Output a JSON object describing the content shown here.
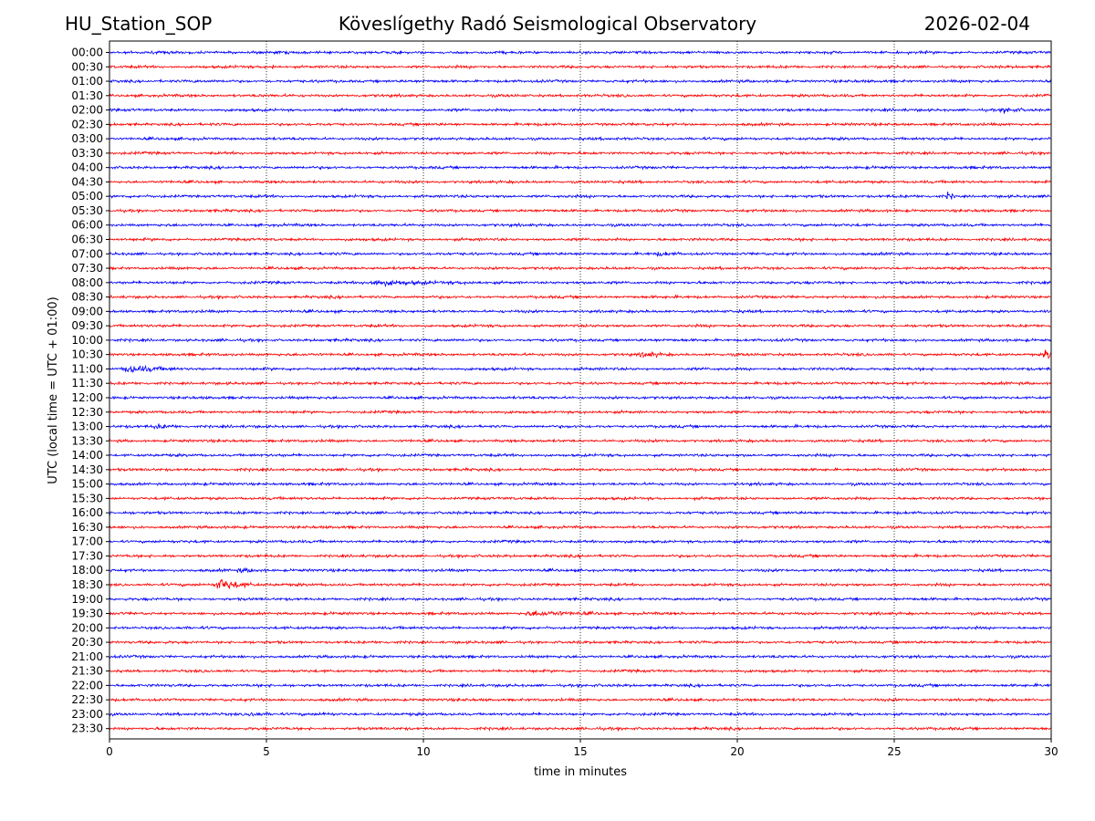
{
  "header": {
    "station": "HU_Station_SOP",
    "title": "Köveslígethy Radó Seismological Observatory",
    "date": "2026-02-04"
  },
  "chart_data": {
    "type": "line",
    "title": "Köveslígethy Radó Seismological Observatory",
    "xlabel": "time in minutes",
    "ylabel": "UTC (local time = UTC + 01:00)",
    "xlim": [
      0,
      30
    ],
    "x_ticks": [
      0,
      5,
      10,
      15,
      20,
      25,
      30
    ],
    "x_tick_labels": [
      "0",
      "5",
      "10",
      "15",
      "20",
      "25",
      "30"
    ],
    "vertical_gridlines_at": [
      5,
      10,
      15,
      20,
      25
    ],
    "trace_colors": [
      "#0000ff",
      "#ff0000"
    ],
    "row_labels": [
      "00:00",
      "00:30",
      "01:00",
      "01:30",
      "02:00",
      "02:30",
      "03:00",
      "03:30",
      "04:00",
      "04:30",
      "05:00",
      "05:30",
      "06:00",
      "06:30",
      "07:00",
      "07:30",
      "08:00",
      "08:30",
      "09:00",
      "09:30",
      "10:00",
      "10:30",
      "11:00",
      "11:30",
      "12:00",
      "12:30",
      "13:00",
      "13:30",
      "14:00",
      "14:30",
      "15:00",
      "15:30",
      "16:00",
      "16:30",
      "17:00",
      "17:30",
      "18:00",
      "18:30",
      "19:00",
      "19:30",
      "20:00",
      "20:30",
      "21:00",
      "21:30",
      "22:00",
      "22:30",
      "23:00",
      "23:30"
    ],
    "events": [
      {
        "row": "00:30",
        "minute": 5.2,
        "amplitude": 1.6,
        "duration": 0.15
      },
      {
        "row": "02:00",
        "minute": 28.5,
        "amplitude": 1.3,
        "duration": 0.8
      },
      {
        "row": "05:00",
        "minute": 26.7,
        "amplitude": 2.3,
        "duration": 0.3
      },
      {
        "row": "07:00",
        "minute": 17.5,
        "amplitude": 1.0,
        "duration": 0.8
      },
      {
        "row": "08:00",
        "minute": 8.5,
        "amplitude": 1.2,
        "duration": 3.5
      },
      {
        "row": "10:30",
        "minute": 17.0,
        "amplitude": 1.6,
        "duration": 0.9
      },
      {
        "row": "10:30",
        "minute": 29.8,
        "amplitude": 3.2,
        "duration": 0.5
      },
      {
        "row": "11:00",
        "minute": 0.6,
        "amplitude": 2.2,
        "duration": 1.6
      },
      {
        "row": "13:00",
        "minute": 1.5,
        "amplitude": 1.1,
        "duration": 1.0
      },
      {
        "row": "18:00",
        "minute": 4.2,
        "amplitude": 1.0,
        "duration": 0.9
      },
      {
        "row": "18:30",
        "minute": 3.5,
        "amplitude": 4.0,
        "duration": 1.2
      },
      {
        "row": "19:30",
        "minute": 13.5,
        "amplitude": 1.2,
        "duration": 2.6
      },
      {
        "row": "23:00",
        "minute": 4.5,
        "amplitude": 1.2,
        "duration": 0.8
      },
      {
        "row": "23:00",
        "minute": 6.8,
        "amplitude": 1.3,
        "duration": 0.3
      }
    ]
  }
}
